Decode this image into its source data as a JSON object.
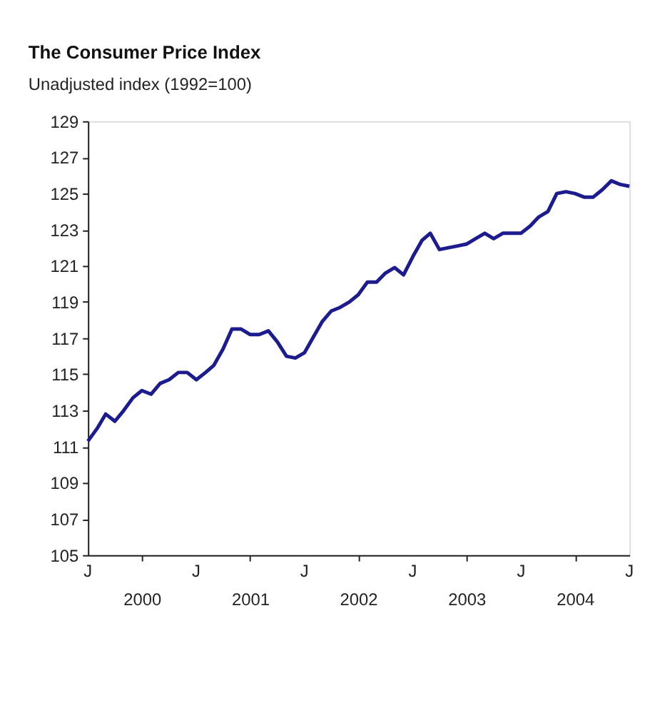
{
  "chart_data": {
    "type": "line",
    "title": "The Consumer Price Index",
    "subtitle": "Unadjusted index (1992=100)",
    "x": [
      "2000-01",
      "2000-02",
      "2000-03",
      "2000-04",
      "2000-05",
      "2000-06",
      "2000-07",
      "2000-08",
      "2000-09",
      "2000-10",
      "2000-11",
      "2000-12",
      "2001-01",
      "2001-02",
      "2001-03",
      "2001-04",
      "2001-05",
      "2001-06",
      "2001-07",
      "2001-08",
      "2001-09",
      "2001-10",
      "2001-11",
      "2001-12",
      "2002-01",
      "2002-02",
      "2002-03",
      "2002-04",
      "2002-05",
      "2002-06",
      "2002-07",
      "2002-08",
      "2002-09",
      "2002-10",
      "2002-11",
      "2002-12",
      "2003-01",
      "2003-02",
      "2003-03",
      "2003-04",
      "2003-05",
      "2003-06",
      "2003-07",
      "2003-08",
      "2003-09",
      "2003-10",
      "2003-11",
      "2003-12",
      "2004-01",
      "2004-02",
      "2004-03",
      "2004-04",
      "2004-05",
      "2004-06",
      "2004-07",
      "2004-08",
      "2004-09",
      "2004-10",
      "2004-11",
      "2004-12",
      "2005-01"
    ],
    "series": [
      {
        "color": "#1c1c8e",
        "values": [
          111.3,
          112.0,
          112.8,
          112.4,
          113.0,
          113.7,
          114.1,
          113.9,
          114.5,
          114.7,
          115.1,
          115.1,
          114.7,
          115.1,
          115.5,
          116.4,
          117.5,
          117.5,
          117.2,
          117.2,
          117.4,
          116.8,
          116.0,
          115.9,
          116.2,
          117.1,
          117.9,
          118.5,
          118.7,
          119.0,
          119.4,
          120.1,
          120.1,
          120.6,
          120.9,
          120.5,
          121.5,
          122.4,
          122.8,
          121.9,
          122.0,
          122.1,
          122.2,
          122.5,
          122.8,
          122.5,
          122.8,
          122.8,
          122.8,
          123.2,
          123.7,
          124.0,
          125.0,
          125.1,
          125.0,
          124.8,
          124.8,
          125.2,
          125.7,
          125.5,
          125.4
        ]
      }
    ],
    "xlim": [
      "2000-01",
      "2005-01"
    ],
    "xticks": [
      {
        "value": "2000-07",
        "label": "2000"
      },
      {
        "value": "2001-07",
        "label": "2001"
      },
      {
        "value": "2002-07",
        "label": "2002"
      },
      {
        "value": "2003-07",
        "label": "2003"
      },
      {
        "value": "2004-07",
        "label": "2004"
      }
    ],
    "annotations": [
      "J",
      "J",
      "J",
      "J",
      "J",
      "J"
    ],
    "ylim": [
      105,
      129
    ],
    "yticks": [
      105,
      107,
      109,
      111,
      113,
      115,
      117,
      119,
      121,
      123,
      125,
      127,
      129
    ],
    "grid": false,
    "marker": "none",
    "line_style": "solid"
  }
}
